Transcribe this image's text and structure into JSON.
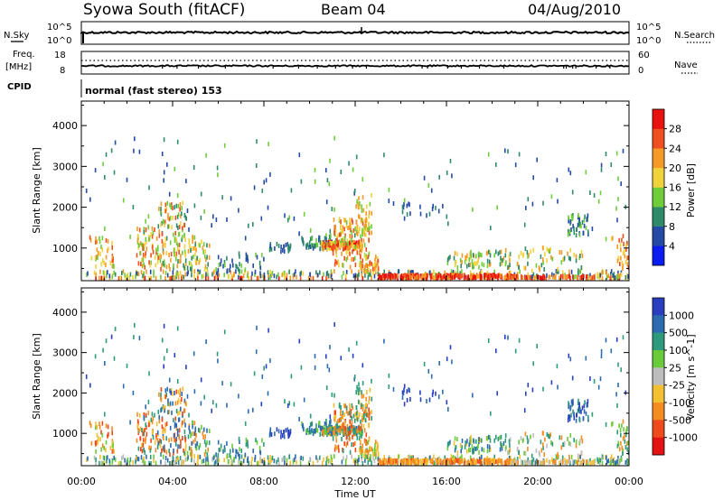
{
  "header": {
    "title": "Syowa South (fitACF)",
    "beam": "Beam 04",
    "date": "04/Aug/2010"
  },
  "top_panels": {
    "nsky_label": "N.Sky",
    "nsky_ticks": [
      "10^5",
      "10^0"
    ],
    "nsearch_label": "N.Search",
    "nsearch_ticks": [
      "10^5",
      "10^0"
    ],
    "freq_label_1": "Freq.",
    "freq_label_2": "[MHz]",
    "freq_ticks": [
      "18",
      "8"
    ],
    "nave_label": "Nave",
    "nave_ticks": [
      "60",
      "0"
    ],
    "cpid_label": "CPID",
    "cpid_text": "normal (fast stereo) 153"
  },
  "chart_data": [
    {
      "type": "heatmap",
      "name": "power",
      "ylabel": "Slant Range [km]",
      "yticks": [
        "1000",
        "2000",
        "3000",
        "4000"
      ],
      "ylim": [
        200,
        4600
      ],
      "xlim": [
        0,
        24
      ],
      "colorbar": {
        "label": "Power [dB]",
        "ticks": [
          "4",
          "8",
          "12",
          "16",
          "20",
          "24",
          "28"
        ],
        "range": [
          0,
          32
        ],
        "colors": [
          "#0a1cf0",
          "#244aa6",
          "#2f8a69",
          "#6fcd3a",
          "#f0d23a",
          "#f59a26",
          "#ef5020",
          "#e8130f"
        ]
      }
    },
    {
      "type": "heatmap",
      "name": "velocity",
      "ylabel": "Slant Range [km]",
      "yticks": [
        "1000",
        "2000",
        "3000",
        "4000"
      ],
      "ylim": [
        200,
        4600
      ],
      "xlim": [
        0,
        24
      ],
      "colorbar": {
        "label": "Velocity [m s^-1]",
        "ticks": [
          "1000",
          "500",
          "100",
          "25",
          "-25",
          "-100",
          "-500",
          "-1000"
        ],
        "colors": [
          "#2a3fc0",
          "#2c6bb0",
          "#2e9a7c",
          "#6acb3a",
          "#bdbdbd",
          "#f2c030",
          "#f58c22",
          "#ef4a1c",
          "#e41313"
        ]
      }
    }
  ],
  "xaxis": {
    "label": "Time UT",
    "ticks": [
      "00:00",
      "04:00",
      "08:00",
      "12:00",
      "16:00",
      "20:00",
      "00:00"
    ]
  }
}
